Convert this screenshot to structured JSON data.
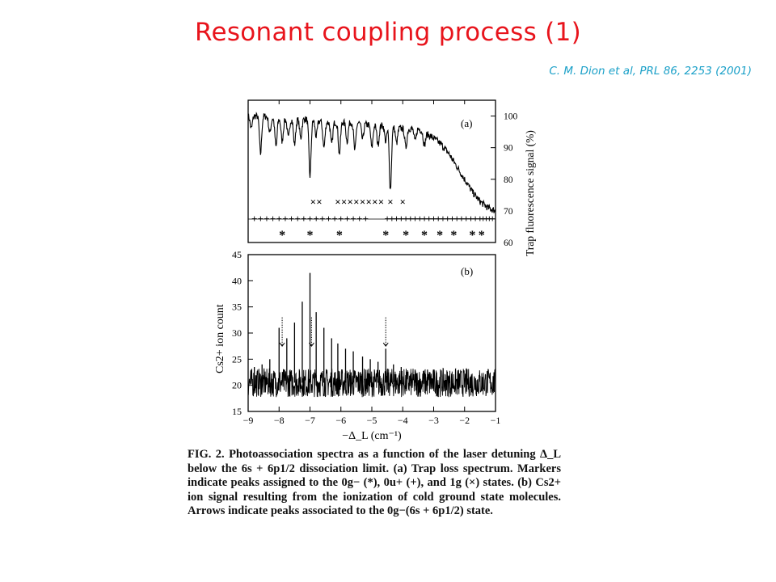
{
  "slide": {
    "title": "Resonant coupling process (1)",
    "citation": "C. M. Dion et al, PRL 86, 2253 (2001)"
  },
  "chart_data": [
    {
      "panel": "(a)",
      "type": "line",
      "ylabel": "Trap fluorescence signal (%)",
      "yaxis_side": "right",
      "ylim": [
        60,
        105
      ],
      "yticks": [
        60,
        70,
        80,
        90,
        100
      ],
      "xlim": [
        -9,
        -1
      ],
      "series": [
        {
          "x": [
            -9.0,
            -8.5,
            -8.0,
            -7.5,
            -7.0,
            -6.5,
            -6.0,
            -5.5,
            -5.0,
            -4.5,
            -4.0,
            -3.5,
            -3.0,
            -2.75,
            -2.5,
            -2.25,
            -2.0,
            -1.75,
            -1.5,
            -1.25,
            -1.0
          ],
          "values": [
            100,
            100,
            99,
            99,
            99,
            98,
            98,
            98,
            97,
            97,
            96,
            96,
            93,
            91,
            88,
            84,
            80,
            76,
            73,
            71,
            70
          ]
        }
      ],
      "marker_rows": [
        {
          "symbol": "×",
          "state": "1g",
          "x": [
            -6.9,
            -6.7,
            -6.1,
            -5.9,
            -5.7,
            -5.5,
            -5.3,
            -5.1,
            -4.9,
            -4.7,
            -4.4,
            -4.0
          ]
        },
        {
          "symbol": "+",
          "state": "0u+",
          "x": [
            -8.8,
            -8.6,
            -8.4,
            -8.2,
            -8.0,
            -7.8,
            -7.6,
            -7.4,
            -7.2,
            -7.0,
            -6.8,
            -6.6,
            -6.4,
            -6.2,
            -6.0,
            -5.8,
            -5.6,
            -5.4,
            -5.2,
            -4.5,
            -4.35,
            -4.2,
            -4.05,
            -3.9,
            -3.75,
            -3.6,
            -3.45,
            -3.3,
            -3.15,
            -3.0,
            -2.85,
            -2.7,
            -2.55,
            -2.4,
            -2.25,
            -2.1,
            -1.95,
            -1.8,
            -1.65,
            -1.5,
            -1.4,
            -1.3,
            -1.2,
            -1.1
          ]
        },
        {
          "symbol": "*",
          "state": "0g-",
          "x": [
            -7.9,
            -7.0,
            -6.05,
            -4.55,
            -3.9,
            -3.3,
            -2.8,
            -2.35,
            -1.75,
            -1.45
          ]
        }
      ]
    },
    {
      "panel": "(b)",
      "type": "line",
      "ylabel": "Cs2+ ion count",
      "xlabel": "−Δ_L (cm⁻¹)",
      "yaxis_side": "left",
      "ylim": [
        15,
        45
      ],
      "yticks": [
        15,
        20,
        25,
        30,
        35,
        40,
        45
      ],
      "xlim": [
        -9,
        -1
      ],
      "xticks": [
        -9,
        -8,
        -7,
        -6,
        -5,
        -4,
        -3,
        -2,
        -1
      ],
      "baseline": 20.5,
      "peaks": [
        {
          "x": -8.8,
          "y": 23.5
        },
        {
          "x": -8.55,
          "y": 24
        },
        {
          "x": -8.3,
          "y": 25
        },
        {
          "x": -8.0,
          "y": 31
        },
        {
          "x": -7.75,
          "y": 29
        },
        {
          "x": -7.5,
          "y": 32
        },
        {
          "x": -7.25,
          "y": 36
        },
        {
          "x": -7.0,
          "y": 41.5
        },
        {
          "x": -6.8,
          "y": 34
        },
        {
          "x": -6.55,
          "y": 31
        },
        {
          "x": -6.3,
          "y": 29
        },
        {
          "x": -6.1,
          "y": 28
        },
        {
          "x": -5.85,
          "y": 27
        },
        {
          "x": -5.6,
          "y": 26.5
        },
        {
          "x": -5.3,
          "y": 25.5
        },
        {
          "x": -5.05,
          "y": 25
        },
        {
          "x": -4.8,
          "y": 24.5
        },
        {
          "x": -4.55,
          "y": 27
        },
        {
          "x": -4.3,
          "y": 24
        },
        {
          "x": -4.05,
          "y": 23.5
        },
        {
          "x": -3.6,
          "y": 23
        },
        {
          "x": -3.2,
          "y": 23
        }
      ],
      "arrows_x": [
        -7.9,
        -6.95,
        -4.55
      ]
    }
  ],
  "caption": {
    "fig_label": "FIG. 2.",
    "text": "Photoassociation spectra as a function of the laser detuning Δ_L below the 6s + 6p1/2 dissociation limit. (a) Trap loss spectrum. Markers indicate peaks assigned to the 0g− (*), 0u+ (+), and 1g (×) states. (b) Cs2+ ion signal resulting from the ionization of cold ground state molecules. Arrows indicate peaks associated to the 0g−(6s + 6p1/2) state."
  }
}
